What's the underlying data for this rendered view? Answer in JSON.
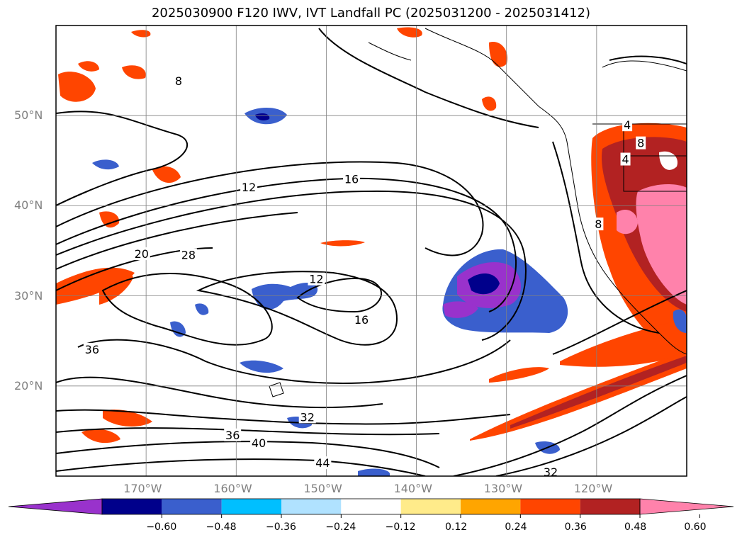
{
  "title": "2025030900 F120 IWV, IVT Landfall PC (2025031200 - 2025031412)",
  "map": {
    "lon_range": [
      -180,
      -110
    ],
    "lat_range": [
      10,
      60
    ],
    "lon_ticks": [
      {
        "lon": -170,
        "label": "170°W"
      },
      {
        "lon": -160,
        "label": "160°W"
      },
      {
        "lon": -150,
        "label": "150°W"
      },
      {
        "lon": -140,
        "label": "140°W"
      },
      {
        "lon": -130,
        "label": "130°W"
      },
      {
        "lon": -120,
        "label": "120°W"
      }
    ],
    "lat_ticks": [
      {
        "lat": 20,
        "label": "20°N"
      },
      {
        "lat": 30,
        "label": "30°N"
      },
      {
        "lat": 40,
        "label": "40°N"
      },
      {
        "lat": 50,
        "label": "50°N"
      }
    ],
    "contour_labels": [
      {
        "text": "8",
        "lon": -166.4,
        "lat": 53.8
      },
      {
        "text": "12",
        "lon": -158.6,
        "lat": 42.0
      },
      {
        "text": "16",
        "lon": -147.2,
        "lat": 42.9
      },
      {
        "text": "20",
        "lon": -170.5,
        "lat": 34.6
      },
      {
        "text": "28",
        "lon": -165.3,
        "lat": 34.5
      },
      {
        "text": "12",
        "lon": -151.1,
        "lat": 31.8
      },
      {
        "text": "16",
        "lon": -146.1,
        "lat": 27.3
      },
      {
        "text": "36",
        "lon": -176.0,
        "lat": 24.0
      },
      {
        "text": "32",
        "lon": -152.1,
        "lat": 16.5
      },
      {
        "text": "36",
        "lon": -160.4,
        "lat": 14.5
      },
      {
        "text": "40",
        "lon": -157.5,
        "lat": 13.6
      },
      {
        "text": "44",
        "lon": -150.4,
        "lat": 11.4
      },
      {
        "text": "32",
        "lon": -125.1,
        "lat": 10.4
      },
      {
        "text": "8",
        "lon": -115.1,
        "lat": 46.9
      },
      {
        "text": "4",
        "lon": -116.8,
        "lat": 45.1
      },
      {
        "text": "4",
        "lon": -116.6,
        "lat": 48.9
      },
      {
        "text": "8",
        "lon": -119.8,
        "lat": 37.9
      }
    ]
  },
  "colorbar": {
    "ticks": [
      "−0.60",
      "−0.48",
      "−0.36",
      "−0.24",
      "−0.12",
      "0.12",
      "0.24",
      "0.36",
      "0.48",
      "0.60"
    ],
    "colors": [
      "#9932cc",
      "#00008b",
      "#3a5fcd",
      "#00bfff",
      "#b0e2ff",
      "#ffffff",
      "#ffeb8a",
      "#ffa500",
      "#ff4500",
      "#b22222",
      "#ff82ab"
    ]
  }
}
